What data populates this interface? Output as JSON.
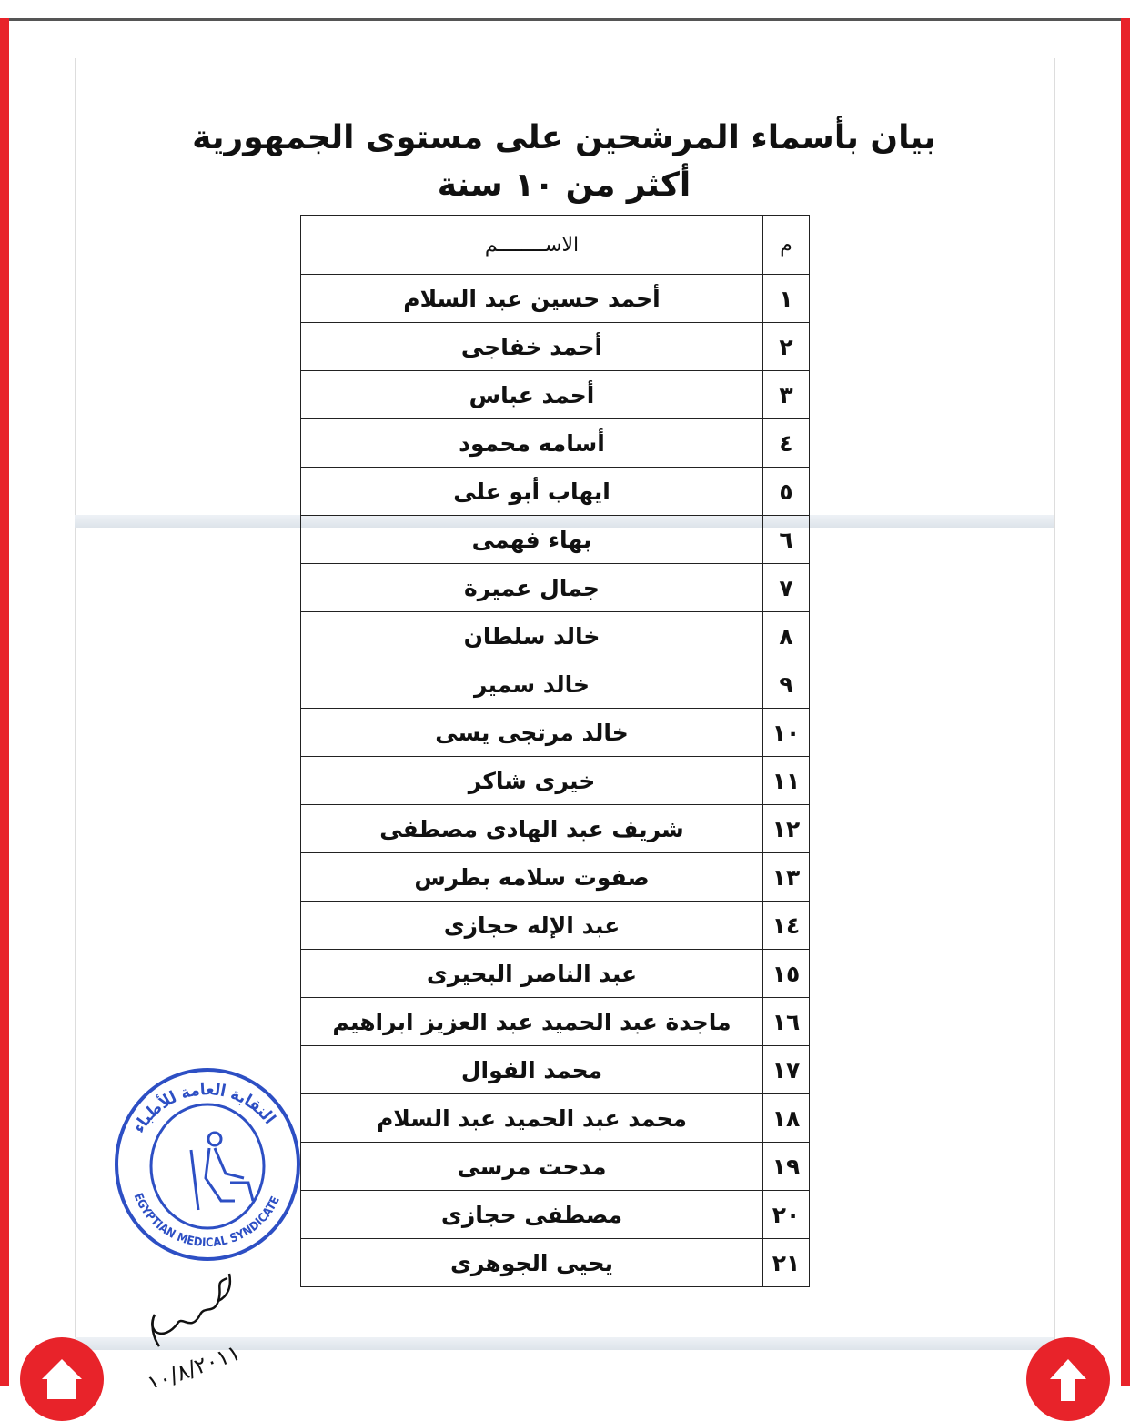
{
  "document": {
    "title_line1": "بيان بأسماء المرشحين على مستوى الجمهورية",
    "title_line2": "أكثر من ١٠ سنة",
    "table": {
      "headers": {
        "number": "م",
        "name": "الاســــــــم"
      },
      "rows": [
        {
          "n": "١",
          "name": "أحمد حسين عبد السلام"
        },
        {
          "n": "٢",
          "name": "أحمد خفاجى"
        },
        {
          "n": "٣",
          "name": "أحمد عباس"
        },
        {
          "n": "٤",
          "name": "أسامه محمود"
        },
        {
          "n": "٥",
          "name": "ايهاب أبو على"
        },
        {
          "n": "٦",
          "name": "بهاء فهمى"
        },
        {
          "n": "٧",
          "name": "جمال عميرة"
        },
        {
          "n": "٨",
          "name": "خالد سلطان"
        },
        {
          "n": "٩",
          "name": "خالد سمير"
        },
        {
          "n": "١٠",
          "name": "خالد مرتجى يسى"
        },
        {
          "n": "١١",
          "name": "خيرى شاكر"
        },
        {
          "n": "١٢",
          "name": "شريف عبد الهادى مصطفى"
        },
        {
          "n": "١٣",
          "name": "صفوت سلامه بطرس"
        },
        {
          "n": "١٤",
          "name": "عبد الإله حجازى"
        },
        {
          "n": "١٥",
          "name": "عبد الناصر البحيرى"
        },
        {
          "n": "١٦",
          "name": "ماجدة عبد الحميد عبد العزيز ابراهيم"
        },
        {
          "n": "١٧",
          "name": "محمد الفوال"
        },
        {
          "n": "١٨",
          "name": "محمد عبد الحميد عبد السلام"
        },
        {
          "n": "١٩",
          "name": "مدحت مرسى"
        },
        {
          "n": "٢٠",
          "name": "مصطفى حجازى"
        },
        {
          "n": "٢١",
          "name": "يحيى الجوهرى"
        }
      ]
    },
    "stamp": {
      "text_ar": "النقابة العامة للأطباء",
      "text_en": "EGYPTIAN MEDICAL SYNDICATE",
      "color": "#2d4fc4"
    },
    "signature_date": "١٠/٨/٢٠١١"
  },
  "nav": {
    "home_icon": "home-icon",
    "up_icon": "arrow-up-icon",
    "accent": "#e8232a"
  }
}
